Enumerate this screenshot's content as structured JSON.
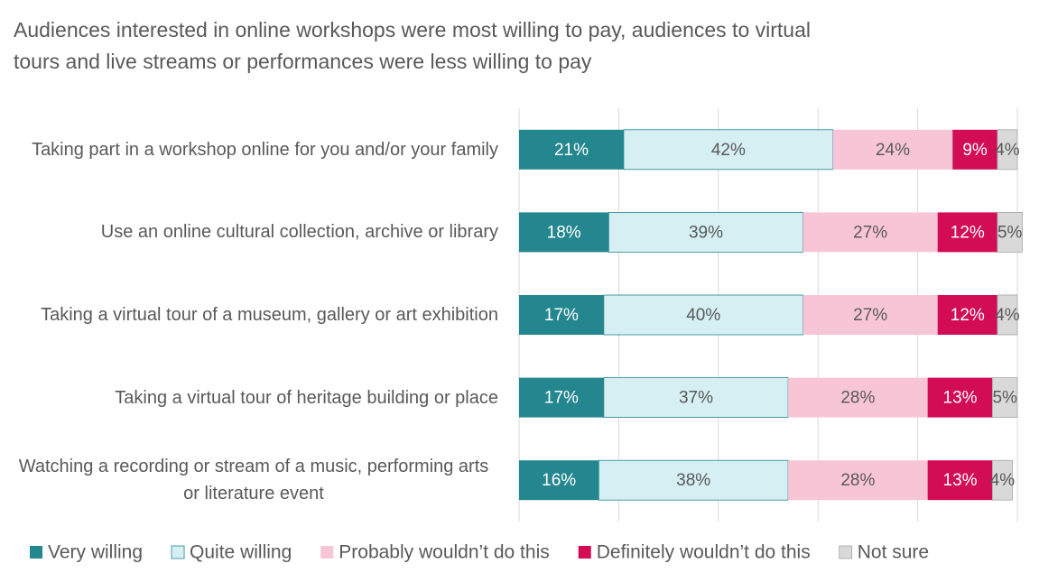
{
  "chart_data": {
    "type": "stacked-bar-horizontal",
    "title": "Audiences interested in online workshops were most willing to pay, audiences to virtual tours and live streams or performances were less willing to pay",
    "categories": [
      "Taking part in a workshop online for you and/or your family",
      "Use an online cultural collection, archive or library",
      "Taking a virtual tour of a museum, gallery or art exhibition",
      "Taking a virtual tour of heritage building or place",
      "Watching a recording or stream of a music, performing arts or literature event"
    ],
    "series": [
      {
        "name": "Very willing",
        "color": "#24868f",
        "label_color": "#ffffff",
        "values": [
          21,
          18,
          17,
          17,
          16
        ],
        "value_labels": [
          "21%",
          "18%",
          "17%",
          "17%",
          "16%"
        ]
      },
      {
        "name": "Quite willing",
        "color": "#d5eff2",
        "label_color": "#595959",
        "values": [
          42,
          39,
          40,
          37,
          38
        ],
        "value_labels": [
          "42%",
          "39%",
          "40%",
          "37%",
          "38%"
        ]
      },
      {
        "name": "Probably wouldn’t do this",
        "color": "#f8c5d7",
        "label_color": "#595959",
        "values": [
          24,
          27,
          27,
          28,
          28
        ],
        "value_labels": [
          "24%",
          "27%",
          "27%",
          "28%",
          "28%"
        ]
      },
      {
        "name": "Definitely wouldn’t do this",
        "color": "#d20c55",
        "label_color": "#ffffff",
        "values": [
          9,
          12,
          12,
          13,
          13
        ],
        "value_labels": [
          "9%",
          "12%",
          "12%",
          "13%",
          "13%"
        ]
      },
      {
        "name": "Not sure",
        "color": "#d9d9d9",
        "label_color": "#595959",
        "values": [
          4,
          5,
          4,
          5,
          4
        ],
        "value_labels": [
          "4%",
          "5%",
          "4%",
          "5%",
          "4%"
        ]
      }
    ],
    "xlim": [
      0,
      100
    ],
    "xticks": [
      0,
      20,
      40,
      60,
      80,
      100
    ],
    "grid": true,
    "legend": "bottom"
  }
}
